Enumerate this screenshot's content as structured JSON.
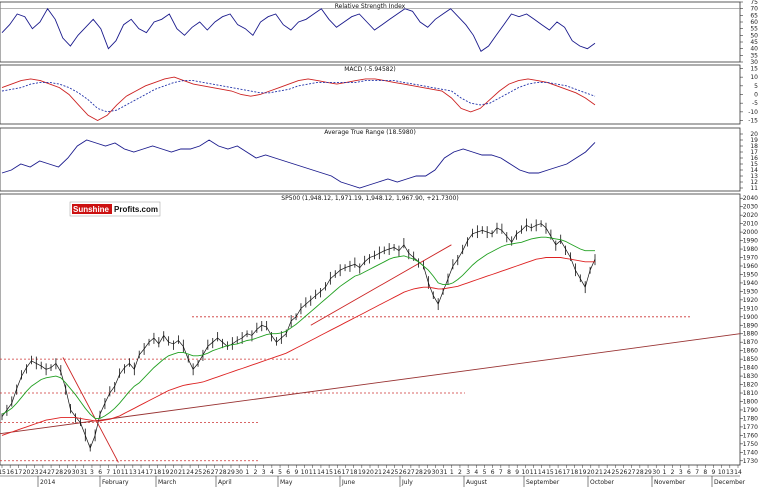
{
  "chart_data": [
    {
      "type": "line",
      "title": "Relative Strength Index",
      "ylim": [
        30,
        75
      ],
      "yticks": [
        30,
        35,
        40,
        45,
        50,
        55,
        60,
        65,
        70,
        75
      ],
      "reference_lines": [
        70
      ],
      "series": [
        {
          "color": "#1a1a8c",
          "values": [
            52,
            58,
            66,
            64,
            55,
            60,
            70,
            62,
            48,
            42,
            50,
            56,
            62,
            55,
            40,
            46,
            58,
            62,
            55,
            52,
            60,
            62,
            66,
            55,
            50,
            56,
            60,
            54,
            60,
            64,
            66,
            58,
            55,
            50,
            60,
            64,
            66,
            58,
            54,
            60,
            62,
            66,
            70,
            62,
            56,
            60,
            64,
            66,
            60,
            54,
            58,
            62,
            66,
            70,
            68,
            60,
            56,
            62,
            66,
            70,
            64,
            58,
            50,
            38,
            42,
            50,
            58,
            66,
            64,
            66,
            62,
            58,
            54,
            60,
            56,
            46,
            42,
            40,
            44
          ]
        }
      ]
    },
    {
      "type": "line",
      "title": "MACD (-5.94582)",
      "ylim": [
        -17,
        17
      ],
      "yticks": [
        -15,
        -10,
        -5,
        0,
        5,
        10,
        15
      ],
      "series": [
        {
          "color": "#cc2222",
          "values": [
            4,
            6,
            8,
            9,
            8,
            6,
            4,
            0,
            -6,
            -12,
            -15,
            -12,
            -6,
            -1,
            2,
            5,
            7,
            9,
            10,
            8,
            6,
            5,
            4,
            3,
            2,
            0,
            -1,
            0,
            2,
            4,
            6,
            8,
            9,
            8,
            7,
            6,
            7,
            8,
            9,
            9,
            8,
            7,
            6,
            5,
            4,
            3,
            2,
            -2,
            -8,
            -10,
            -8,
            -3,
            2,
            6,
            8,
            9,
            8,
            7,
            5,
            3,
            1,
            -2,
            -6
          ]
        },
        {
          "color": "#2233aa",
          "dashed": true,
          "values": [
            2,
            3,
            4,
            6,
            7,
            7,
            6,
            4,
            1,
            -3,
            -8,
            -10,
            -9,
            -6,
            -3,
            0,
            3,
            5,
            7,
            8,
            8,
            7,
            6,
            5,
            4,
            3,
            2,
            1,
            1,
            2,
            3,
            5,
            6,
            7,
            7,
            7,
            7,
            7,
            8,
            8,
            8,
            8,
            7,
            6,
            5,
            4,
            3,
            2,
            -2,
            -5,
            -6,
            -5,
            -2,
            1,
            4,
            6,
            7,
            7,
            6,
            5,
            3,
            1,
            -1
          ]
        }
      ]
    },
    {
      "type": "line",
      "title": "Average True Range (18.5980)",
      "ylim": [
        10.5,
        21
      ],
      "yticks": [
        11,
        12,
        13,
        14,
        15,
        16,
        17,
        18,
        19,
        20
      ],
      "series": [
        {
          "color": "#1a1a8c",
          "values": [
            13.5,
            14,
            15,
            14.5,
            15.5,
            15,
            14.5,
            16,
            18,
            19,
            18.5,
            18,
            18.5,
            17.5,
            17,
            17.5,
            18,
            17.5,
            17,
            17.5,
            17.5,
            18,
            19,
            18,
            17.5,
            18,
            17,
            16,
            16.5,
            16,
            15.5,
            15,
            14.5,
            14,
            13.5,
            13,
            12,
            11.5,
            11,
            11.5,
            12,
            12.5,
            12,
            12.5,
            13,
            13,
            14,
            16,
            17,
            17.5,
            17,
            16.5,
            16.5,
            16,
            15,
            14,
            13.5,
            13.5,
            14,
            14.5,
            15,
            16,
            17,
            18.6
          ]
        }
      ]
    },
    {
      "type": "line",
      "title": "SP500 (1,948.12, 1,971.19, 1,948.12, 1,967.90, +21.7300)",
      "ylim": [
        1725,
        2045
      ],
      "yticks": [
        1730,
        1740,
        1750,
        1760,
        1770,
        1780,
        1790,
        1800,
        1810,
        1820,
        1830,
        1840,
        1850,
        1860,
        1870,
        1880,
        1890,
        1900,
        1910,
        1920,
        1930,
        1940,
        1950,
        1960,
        1970,
        1980,
        1990,
        2000,
        2010,
        2020,
        2030,
        2040
      ],
      "series": [
        {
          "name": "",
          "color": "#111111",
          "values": [
            1782,
            1790,
            1798,
            1815,
            1830,
            1840,
            1848,
            1845,
            1842,
            1838,
            1840,
            1845,
            1835,
            1815,
            1790,
            1782,
            1775,
            1760,
            1745,
            1760,
            1785,
            1798,
            1810,
            1818,
            1832,
            1840,
            1845,
            1838,
            1855,
            1862,
            1870,
            1875,
            1868,
            1878,
            1870,
            1868,
            1872,
            1865,
            1850,
            1838,
            1845,
            1855,
            1865,
            1870,
            1875,
            1870,
            1865,
            1868,
            1872,
            1875,
            1880,
            1878,
            1885,
            1890,
            1888,
            1878,
            1870,
            1875,
            1880,
            1895,
            1900,
            1910,
            1915,
            1920,
            1925,
            1930,
            1935,
            1945,
            1950,
            1955,
            1958,
            1960,
            1962,
            1958,
            1965,
            1970,
            1972,
            1975,
            1978,
            1980,
            1982,
            1978,
            1985,
            1975,
            1970,
            1965,
            1960,
            1940,
            1925,
            1915,
            1930,
            1945,
            1960,
            1968,
            1978,
            1990,
            1998,
            2000,
            2002,
            2000,
            1998,
            2005,
            2002,
            1995,
            1988,
            1998,
            2002,
            2008,
            2005,
            2008,
            2010,
            2005,
            1995,
            1985,
            1990,
            1980,
            1970,
            1955,
            1945,
            1935,
            1955,
            1968
          ]
        },
        {
          "name": "",
          "color": "#22a022",
          "values": [
            1785,
            1788,
            1792,
            1798,
            1805,
            1812,
            1818,
            1822,
            1826,
            1828,
            1829,
            1830,
            1828,
            1822,
            1815,
            1808,
            1800,
            1792,
            1785,
            1780,
            1780,
            1783,
            1787,
            1792,
            1798,
            1805,
            1812,
            1818,
            1822,
            1828,
            1834,
            1840,
            1845,
            1850,
            1854,
            1856,
            1858,
            1858,
            1856,
            1854,
            1854,
            1855,
            1857,
            1860,
            1862,
            1864,
            1866,
            1867,
            1868,
            1870,
            1872,
            1873,
            1875,
            1877,
            1879,
            1880,
            1880,
            1881,
            1883,
            1887,
            1891,
            1896,
            1901,
            1906,
            1911,
            1916,
            1921,
            1926,
            1931,
            1936,
            1940,
            1944,
            1948,
            1950,
            1953,
            1956,
            1959,
            1962,
            1965,
            1968,
            1970,
            1971,
            1972,
            1970,
            1968,
            1965,
            1960,
            1955,
            1948,
            1940,
            1938,
            1938,
            1940,
            1944,
            1949,
            1955,
            1961,
            1966,
            1970,
            1974,
            1977,
            1980,
            1983,
            1985,
            1986,
            1987,
            1988,
            1990,
            1992,
            1993,
            1994,
            1994,
            1993,
            1992,
            1991,
            1989,
            1986,
            1983,
            1980,
            1978,
            1978,
            1978
          ]
        },
        {
          "name": "",
          "color": "#dd2222",
          "values": [
            1760,
            1762,
            1764,
            1766,
            1768,
            1770,
            1772,
            1774,
            1776,
            1778,
            1779,
            1780,
            1781,
            1781,
            1781,
            1781,
            1780,
            1779,
            1778,
            1777,
            1777,
            1778,
            1779,
            1781,
            1783,
            1786,
            1789,
            1792,
            1795,
            1798,
            1801,
            1804,
            1807,
            1810,
            1813,
            1815,
            1817,
            1819,
            1820,
            1821,
            1822,
            1823,
            1825,
            1827,
            1829,
            1831,
            1833,
            1835,
            1837,
            1839,
            1841,
            1843,
            1845,
            1847,
            1849,
            1851,
            1853,
            1855,
            1857,
            1860,
            1863,
            1866,
            1869,
            1872,
            1875,
            1878,
            1881,
            1884,
            1887,
            1890,
            1893,
            1896,
            1899,
            1902,
            1905,
            1908,
            1911,
            1914,
            1917,
            1920,
            1923,
            1926,
            1929,
            1931,
            1933,
            1934,
            1935,
            1935,
            1934,
            1933,
            1933,
            1934,
            1935,
            1936,
            1938,
            1940,
            1942,
            1944,
            1946,
            1948,
            1950,
            1952,
            1954,
            1956,
            1958,
            1960,
            1962,
            1964,
            1966,
            1968,
            1969,
            1970,
            1970,
            1970,
            1970,
            1969,
            1968,
            1967,
            1966,
            1965,
            1965,
            1965
          ]
        }
      ],
      "reference_lines": [
        {
          "kind": "horizontal",
          "y": 1900,
          "style": "dotted",
          "color": "#cc3333"
        },
        {
          "kind": "horizontal",
          "y": 1850,
          "style": "dotted",
          "color": "#cc3333"
        },
        {
          "kind": "horizontal",
          "y": 1810,
          "style": "dotted",
          "color": "#cc3333"
        },
        {
          "kind": "horizontal",
          "y": 1775,
          "style": "dotted",
          "color": "#cc3333"
        },
        {
          "kind": "horizontal",
          "y": 1730,
          "style": "dotted",
          "color": "#cc3333"
        },
        {
          "kind": "trend",
          "from": [
            0,
            1762
          ],
          "to": [
            1,
            1880
          ],
          "color": "#993333"
        },
        {
          "kind": "trend",
          "from": [
            0.085,
            1852
          ],
          "to": [
            0.16,
            1728
          ],
          "color": "#cc2222"
        },
        {
          "kind": "trend",
          "from": [
            0.42,
            1890
          ],
          "to": [
            0.61,
            1985
          ],
          "color": "#cc2222"
        }
      ]
    }
  ],
  "x_axis": {
    "day_labels": [
      "15",
      "16",
      "17",
      "20",
      "23",
      "24",
      "27",
      "28",
      "29",
      "30",
      "31",
      "3",
      "6",
      "7",
      "10",
      "11",
      "13",
      "14",
      "17",
      "18",
      "19",
      "20",
      "21",
      "24",
      "25",
      "26",
      "27",
      "28",
      "29",
      "30",
      "1",
      "2",
      "3",
      "4",
      "5",
      "6",
      "9",
      "10",
      "11",
      "14",
      "15",
      "16",
      "17",
      "18",
      "19",
      "20",
      "21",
      "24",
      "25",
      "26",
      "27",
      "28",
      "29",
      "30",
      "31",
      "1",
      "2",
      "3",
      "4",
      "5",
      "6",
      "7",
      "8",
      "9",
      "10",
      "11",
      "14",
      "15",
      "16",
      "17",
      "18",
      "19",
      "20",
      "21",
      "24",
      "25",
      "26",
      "27",
      "28",
      "29",
      "30",
      "1",
      "2",
      "3",
      "6",
      "7",
      "8",
      "9",
      "10",
      "13",
      "14"
    ],
    "month_labels": [
      "2014",
      "February",
      "March",
      "April",
      "May",
      "June",
      "July",
      "August",
      "September",
      "October",
      "November",
      "December"
    ]
  },
  "logo": {
    "part1": "Sunshine",
    "part2": "Profits",
    "part3": ".com"
  }
}
